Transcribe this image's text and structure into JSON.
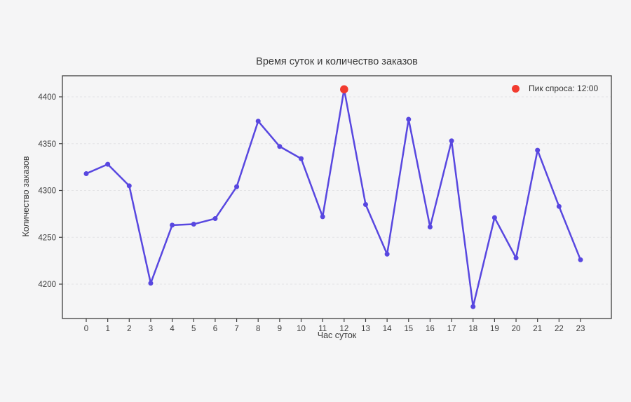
{
  "chart_data": {
    "type": "line",
    "title": "Время суток и количество заказов",
    "xlabel": "Час суток",
    "ylabel": "Количество заказов",
    "x": [
      0,
      1,
      2,
      3,
      4,
      5,
      6,
      7,
      8,
      9,
      10,
      11,
      12,
      13,
      14,
      15,
      16,
      17,
      18,
      19,
      20,
      21,
      22,
      23
    ],
    "values": [
      4318,
      4328,
      4305,
      4201,
      4263,
      4264,
      4270,
      4304,
      4374,
      4347,
      4334,
      4272,
      4408,
      4285,
      4232,
      4376,
      4261,
      4353,
      4176,
      4271,
      4228,
      4343,
      4283,
      4226
    ],
    "yticks": [
      4200,
      4250,
      4300,
      4350,
      4400
    ],
    "ylim": [
      4163,
      4422
    ],
    "grid": "horizontal-dashed",
    "legend_position": "top-right-inside",
    "peak": {
      "hour": 12,
      "value": 4408,
      "label": "Пик спроса: 12:00",
      "color": "#f23b2f"
    },
    "line_color": "#5847e0",
    "marker_color": "#5847e0",
    "background_color": "#f5f5f6",
    "grid_color": "#e3e3e5",
    "border_color": "#3e3e3e",
    "text_color": "#3b3b3b"
  }
}
